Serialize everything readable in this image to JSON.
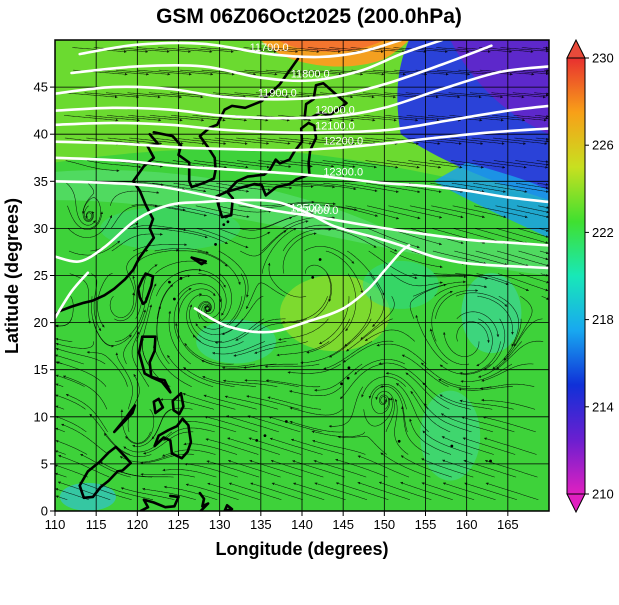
{
  "title": "GSM 06Z06Oct2025 (200.0hPa)",
  "x_axis": {
    "label": "Longitude (degrees)",
    "range": [
      110,
      170
    ],
    "ticks": [
      110,
      115,
      120,
      125,
      130,
      135,
      140,
      145,
      150,
      155,
      160,
      165
    ]
  },
  "y_axis": {
    "label": "Latitude  (degrees)",
    "range": [
      0,
      50
    ],
    "ticks": [
      0,
      5,
      10,
      15,
      20,
      25,
      30,
      35,
      40,
      45
    ]
  },
  "colorbar": {
    "range": [
      210,
      230
    ],
    "ticks": [
      210,
      214,
      218,
      222,
      226,
      230
    ],
    "stops": [
      "#e020c0",
      "#6a1fd0",
      "#1030d8",
      "#18a8f0",
      "#18e8b8",
      "#40e030",
      "#c8e020",
      "#f8a018",
      "#e83030"
    ]
  },
  "contours": [
    {
      "label": "11700.0",
      "points": [
        [
          113,
          48.5
        ],
        [
          120,
          49.5
        ],
        [
          128,
          49.6
        ],
        [
          136,
          48.5
        ],
        [
          142,
          48.2
        ],
        [
          147,
          48.7
        ],
        [
          152,
          50
        ]
      ]
    },
    {
      "label": "11800.0",
      "points": [
        [
          112,
          46.5
        ],
        [
          120,
          47.2
        ],
        [
          128,
          47.2
        ],
        [
          135,
          46
        ],
        [
          141,
          45.7
        ],
        [
          147,
          46.7
        ],
        [
          152,
          48.5
        ],
        [
          157,
          50
        ]
      ]
    },
    {
      "label": "11900.0",
      "points": [
        [
          110,
          44.3
        ],
        [
          117,
          45
        ],
        [
          124,
          44.8
        ],
        [
          130,
          44
        ],
        [
          137,
          43.7
        ],
        [
          144,
          44.1
        ],
        [
          150,
          45.3
        ],
        [
          157,
          47.4
        ],
        [
          163,
          49.4
        ]
      ]
    },
    {
      "label": "12000.0",
      "points": [
        [
          110,
          42.5
        ],
        [
          117,
          42.8
        ],
        [
          124,
          42.6
        ],
        [
          130,
          42
        ],
        [
          137,
          41.7
        ],
        [
          144,
          41.9
        ],
        [
          150,
          42.8
        ],
        [
          157,
          44.8
        ],
        [
          164,
          46.6
        ],
        [
          170,
          47.2
        ]
      ]
    },
    {
      "label": "12100.0",
      "points": [
        [
          110,
          41
        ],
        [
          117,
          41.2
        ],
        [
          124,
          41
        ],
        [
          130,
          40.5
        ],
        [
          137,
          40.2
        ],
        [
          144,
          40.2
        ],
        [
          151,
          40.5
        ],
        [
          158,
          41.5
        ],
        [
          165,
          42.5
        ],
        [
          170,
          43
        ]
      ]
    },
    {
      "label": "12200.0",
      "points": [
        [
          110,
          39.2
        ],
        [
          118,
          39
        ],
        [
          125,
          38.6
        ],
        [
          132,
          38.4
        ],
        [
          139,
          38.3
        ],
        [
          145,
          38.6
        ],
        [
          150,
          39
        ],
        [
          156,
          39.6
        ],
        [
          163,
          40.2
        ],
        [
          170,
          40.6
        ]
      ]
    },
    {
      "label": "12300.0",
      "points": [
        [
          110,
          37.5
        ],
        [
          118,
          37.2
        ],
        [
          125,
          36.6
        ],
        [
          132,
          36.2
        ],
        [
          139,
          35.8
        ],
        [
          145,
          35.3
        ],
        [
          150,
          34.8
        ],
        [
          155,
          34.5
        ],
        [
          160,
          34
        ],
        [
          165,
          33.3
        ],
        [
          170,
          32.8
        ]
      ]
    },
    {
      "label": "12400.0",
      "points": [
        [
          110,
          35
        ],
        [
          117,
          34.8
        ],
        [
          123,
          34.4
        ],
        [
          130,
          33.2
        ],
        [
          136,
          32
        ],
        [
          142,
          31.2
        ],
        [
          148,
          30.3
        ],
        [
          154,
          29.5
        ],
        [
          160,
          28.8
        ],
        [
          165,
          28.5
        ],
        [
          170,
          28.2
        ]
      ]
    },
    {
      "label": "12500.0",
      "points": [
        [
          110,
          27
        ],
        [
          113,
          26.5
        ],
        [
          116,
          28
        ],
        [
          120,
          31
        ],
        [
          124,
          32.5
        ],
        [
          128,
          32.8
        ],
        [
          133,
          33
        ],
        [
          137,
          32.8
        ],
        [
          141,
          31.5
        ],
        [
          144,
          30.2
        ],
        [
          149,
          29
        ],
        [
          152,
          28.2
        ],
        [
          156,
          27
        ],
        [
          160,
          26.3
        ],
        [
          165,
          26
        ],
        [
          170,
          25.8
        ]
      ]
    },
    {
      "label": "",
      "points": [
        [
          110,
          20.5
        ],
        [
          112,
          23.3
        ],
        [
          114,
          25.3
        ]
      ]
    },
    {
      "label": "",
      "points": [
        [
          127,
          21.5
        ],
        [
          131,
          19.6
        ],
        [
          136,
          19
        ],
        [
          141,
          20.2
        ],
        [
          145,
          21.5
        ],
        [
          148,
          23.5
        ],
        [
          150,
          25.5
        ],
        [
          152,
          27.5
        ],
        [
          153,
          28.2
        ]
      ]
    }
  ]
}
